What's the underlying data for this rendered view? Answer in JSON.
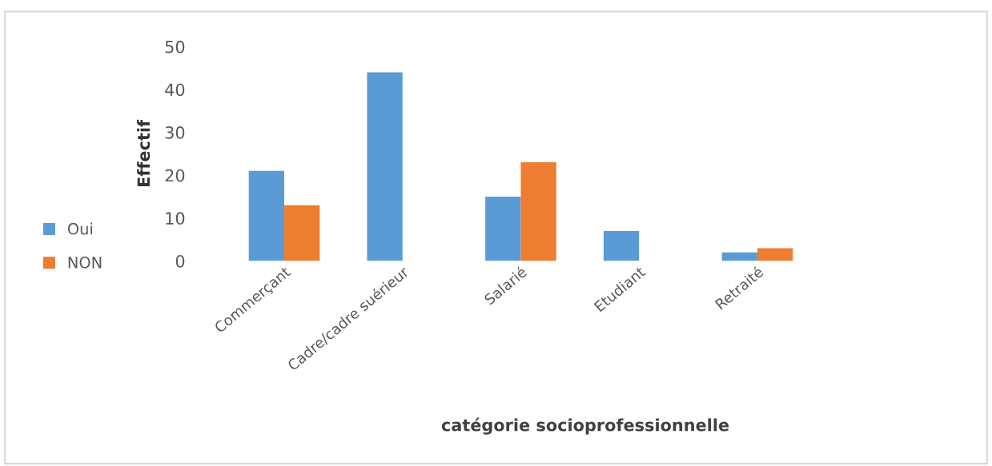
{
  "chart_data": {
    "type": "bar",
    "xlabel": "catégorie socioprofessionnelle",
    "ylabel": "Effectif",
    "categories": [
      "Commerçant",
      "Cadre/cadre suérieur",
      "Salarié",
      "Etudiant",
      "Retraité"
    ],
    "series": [
      {
        "name": "Oui",
        "color": "#5b9bd5",
        "values": [
          21,
          44,
          15,
          7,
          2
        ]
      },
      {
        "name": "NON",
        "color": "#ed7d31",
        "values": [
          13,
          0,
          23,
          0,
          3
        ]
      }
    ],
    "ylim": [
      0,
      50
    ],
    "yticks": [
      0,
      10,
      20,
      30,
      40,
      50
    ],
    "grid": false,
    "legend": "left"
  }
}
